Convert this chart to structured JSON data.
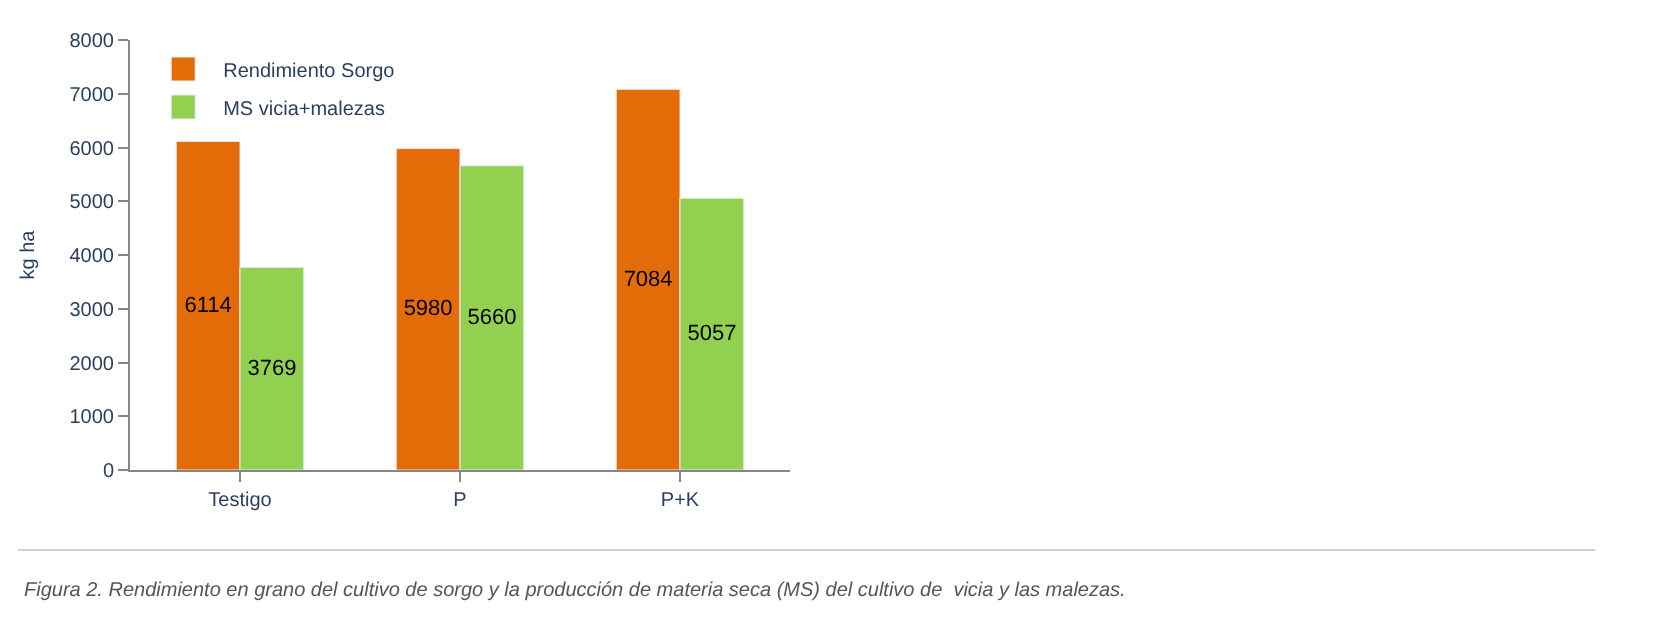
{
  "chart_data": {
    "type": "bar",
    "ylabel": "kg ha",
    "categories": [
      "Testigo",
      "P",
      "P+K"
    ],
    "series": [
      {
        "name": "Rendimiento Sorgo",
        "color": "#e36c09",
        "values": [
          6114,
          5980,
          7084
        ]
      },
      {
        "name": "MS vicia+malezas",
        "color": "#92d050",
        "values": [
          3769,
          5660,
          5057
        ]
      }
    ],
    "ylim": [
      0,
      8000
    ],
    "yticks": [
      0,
      1000,
      2000,
      3000,
      4000,
      5000,
      6000,
      7000,
      8000
    ],
    "grid": false,
    "legend": "top left",
    "data_labels": true,
    "annotations": [
      "Figura 2. Rendimiento en grano del cultivo de sorgo y la producción de materia seca (MS) del cultivo de  vicia y las malezas."
    ]
  }
}
